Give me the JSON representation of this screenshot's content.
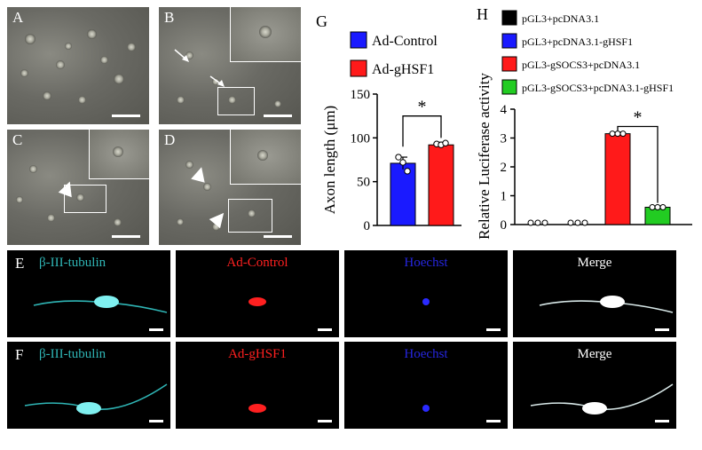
{
  "panels": {
    "A": "A",
    "B": "B",
    "C": "C",
    "D": "D",
    "E": "E",
    "F": "F",
    "G": "G",
    "H": "H"
  },
  "fluor_labels": {
    "E": [
      "β-III-tubulin",
      "Ad-Control",
      "Hoechst",
      "Merge"
    ],
    "F": [
      "β-III-tubulin",
      "Ad-gHSF1",
      "Hoechst",
      "Merge"
    ]
  },
  "colors": {
    "cyan": "#2fb5b5",
    "red": "#ff2020",
    "blue": "#2626e0",
    "white": "#ffffff",
    "black": "#000000",
    "green": "#22c422"
  },
  "chart_data": [
    {
      "type": "bar",
      "panel": "G",
      "categories": [
        "Ad-Control",
        "Ad-gHSF1"
      ],
      "values": [
        71,
        92
      ],
      "errors": [
        7,
        3
      ],
      "points": [
        [
          78,
          72,
          62
        ],
        [
          93,
          92,
          94
        ]
      ],
      "colors": [
        "#1a1aff",
        "#ff1a1a"
      ],
      "ylabel": "Axon length (μm)",
      "ylim": [
        0,
        150
      ],
      "yticks": [
        "0",
        "50",
        "100",
        "150"
      ],
      "legend": [
        "Ad-Control",
        "Ad-gHSF1"
      ],
      "significance": "*"
    },
    {
      "type": "bar",
      "panel": "H",
      "categories": [
        "pGL3+pcDNA3.1",
        "pGL3+pcDNA3.1-gHSF1",
        "pGL3-gSOCS3+pcDNA3.1",
        "pGL3-gSOCS3+pcDNA3.1-gHSF1"
      ],
      "values": [
        0.02,
        0.02,
        3.15,
        0.6
      ],
      "errors": [
        0,
        0,
        0.05,
        0.03
      ],
      "colors": [
        "#000000",
        "#1a1aff",
        "#ff1a1a",
        "#22cc22"
      ],
      "ylabel": "Relative Luciferase activity",
      "ylim": [
        0,
        4
      ],
      "yticks": [
        "0",
        "1",
        "2",
        "3",
        "4"
      ],
      "legend": [
        "pGL3+pcDNA3.1",
        "pGL3+pcDNA3.1-gHSF1",
        "pGL3-gSOCS3+pcDNA3.1",
        "pGL3-gSOCS3+pcDNA3.1-gHSF1"
      ],
      "significance": "*"
    }
  ]
}
